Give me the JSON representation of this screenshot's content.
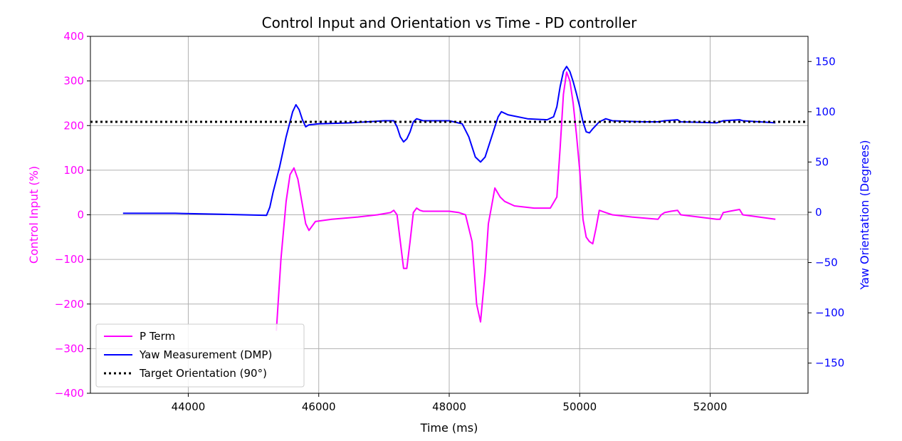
{
  "chart_data": {
    "type": "line",
    "title": "Control Input and Orientation vs Time - PD controller",
    "xlabel": "Time (ms)",
    "ylabel_left": "Control Input (%)",
    "ylabel_right": "Yaw Orientation (Degrees)",
    "xlim": [
      42500,
      53500
    ],
    "ylim_left": [
      -400,
      400
    ],
    "ylim_right": [
      -180,
      175
    ],
    "x_ticks": [
      44000,
      46000,
      48000,
      50000,
      52000
    ],
    "y_ticks_left": [
      400,
      300,
      200,
      100,
      0,
      -100,
      -200,
      -300,
      -400
    ],
    "y_ticks_right": [
      150,
      100,
      50,
      0,
      -50,
      -100,
      -150
    ],
    "x_tick_labels": [
      "44000",
      "46000",
      "48000",
      "50000",
      "52000"
    ],
    "y_tick_labels_left": [
      "400",
      "300",
      "200",
      "100",
      "0",
      "−100",
      "−200",
      "−300",
      "−400"
    ],
    "y_tick_labels_right": [
      "150",
      "100",
      "50",
      "0",
      "−50",
      "−100",
      "−150"
    ],
    "grid": true,
    "legend_position": "bottom-left",
    "colors": {
      "left_axis": "#ff00ff",
      "right_axis": "#0000ff",
      "target": "#000000"
    },
    "series": [
      {
        "name": "P Term",
        "axis": "left",
        "color": "#ff00ff",
        "style": "solid",
        "x": [
          45350,
          45420,
          45500,
          45560,
          45620,
          45680,
          45740,
          45800,
          45850,
          45950,
          46200,
          46600,
          46900,
          47100,
          47150,
          47200,
          47250,
          47300,
          47350,
          47400,
          47450,
          47500,
          47550,
          47600,
          47700,
          48000,
          48150,
          48250,
          48350,
          48420,
          48480,
          48550,
          48600,
          48650,
          48700,
          48780,
          48850,
          49000,
          49300,
          49550,
          49650,
          49700,
          49750,
          49800,
          49850,
          49900,
          49950,
          50000,
          50050,
          50100,
          50150,
          50200,
          50250,
          50300,
          50400,
          50500,
          50800,
          51200,
          51250,
          51300,
          51400,
          51500,
          51550,
          52100,
          52150,
          52200,
          52300,
          52450,
          52500,
          53000
        ],
        "values": [
          -260,
          -100,
          30,
          90,
          105,
          80,
          30,
          -20,
          -35,
          -15,
          -10,
          -5,
          0,
          5,
          10,
          0,
          -60,
          -120,
          -120,
          -60,
          5,
          15,
          10,
          8,
          8,
          8,
          5,
          0,
          -60,
          -200,
          -240,
          -130,
          -20,
          20,
          60,
          40,
          30,
          20,
          15,
          15,
          40,
          150,
          270,
          320,
          300,
          250,
          180,
          100,
          -10,
          -50,
          -60,
          -65,
          -30,
          10,
          5,
          0,
          -5,
          -10,
          0,
          5,
          8,
          10,
          0,
          -10,
          -10,
          5,
          8,
          12,
          0,
          -10
        ]
      },
      {
        "name": "Yaw Measurement (DMP)",
        "axis": "right",
        "color": "#0000ff",
        "style": "solid",
        "x": [
          43000,
          43800,
          44500,
          45200,
          45250,
          45300,
          45400,
          45500,
          45600,
          45650,
          45700,
          45750,
          45800,
          45850,
          46000,
          46500,
          47000,
          47150,
          47200,
          47250,
          47300,
          47350,
          47400,
          47450,
          47500,
          47550,
          47600,
          47700,
          48000,
          48200,
          48300,
          48400,
          48480,
          48550,
          48650,
          48750,
          48800,
          48900,
          49200,
          49500,
          49600,
          49650,
          49700,
          49750,
          49800,
          49850,
          49900,
          49950,
          50000,
          50050,
          50100,
          50150,
          50200,
          50300,
          50400,
          50500,
          51000,
          51200,
          51300,
          51500,
          51550,
          52100,
          52200,
          52450,
          52500,
          53000
        ],
        "values": [
          -1,
          -1,
          -2,
          -3,
          5,
          20,
          45,
          75,
          100,
          107,
          102,
          92,
          85,
          87,
          88,
          89,
          91,
          91,
          85,
          75,
          70,
          73,
          80,
          90,
          93,
          92,
          91,
          91,
          91,
          88,
          75,
          55,
          50,
          55,
          75,
          95,
          100,
          97,
          93,
          92,
          95,
          105,
          125,
          140,
          145,
          140,
          130,
          118,
          105,
          90,
          80,
          79,
          83,
          90,
          93,
          91,
          90,
          90,
          91,
          92,
          90,
          89,
          91,
          92,
          91,
          89
        ]
      },
      {
        "name": "Target Orientation (90°)",
        "axis": "right",
        "color": "#000000",
        "style": "dotted",
        "x": [
          42500,
          53500
        ],
        "values": [
          90,
          90
        ]
      }
    ]
  }
}
